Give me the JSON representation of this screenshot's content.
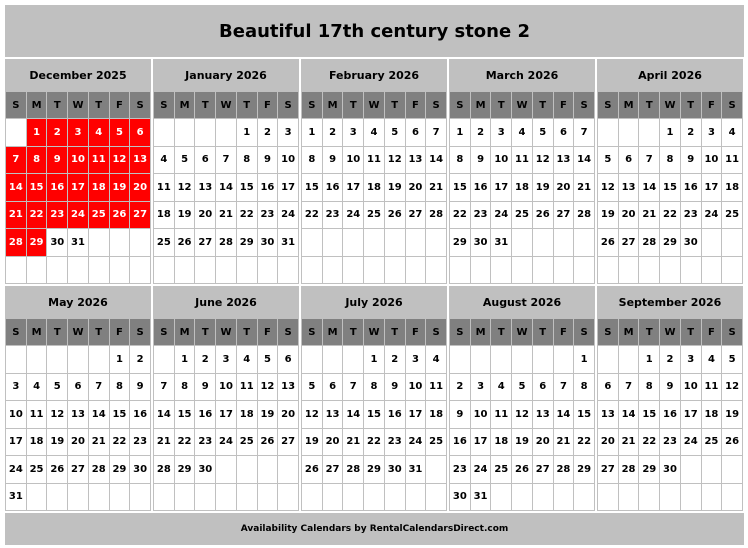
{
  "title": "Beautiful 17th century stone 2",
  "footer": "Availability Calendars by RentalCalendarsDirect.com",
  "colors": {
    "booked": "#ff0000",
    "header": "#c0c0c0",
    "weekday_header": "#808080"
  },
  "weekdays": [
    "S",
    "M",
    "T",
    "W",
    "T",
    "F",
    "S"
  ],
  "months": [
    {
      "name": "December 2025",
      "first_weekday": 1,
      "days": 31,
      "booked": [
        1,
        2,
        3,
        4,
        5,
        6,
        7,
        8,
        9,
        10,
        11,
        12,
        13,
        14,
        15,
        16,
        17,
        18,
        19,
        20,
        21,
        22,
        23,
        24,
        25,
        26,
        27,
        28,
        29
      ]
    },
    {
      "name": "January 2026",
      "first_weekday": 4,
      "days": 31,
      "booked": []
    },
    {
      "name": "February 2026",
      "first_weekday": 0,
      "days": 28,
      "booked": []
    },
    {
      "name": "March 2026",
      "first_weekday": 0,
      "days": 31,
      "booked": []
    },
    {
      "name": "April 2026",
      "first_weekday": 3,
      "days": 30,
      "booked": []
    },
    {
      "name": "May 2026",
      "first_weekday": 5,
      "days": 31,
      "booked": []
    },
    {
      "name": "June 2026",
      "first_weekday": 1,
      "days": 30,
      "booked": []
    },
    {
      "name": "July 2026",
      "first_weekday": 3,
      "days": 31,
      "booked": []
    },
    {
      "name": "August 2026",
      "first_weekday": 6,
      "days": 31,
      "booked": []
    },
    {
      "name": "September 2026",
      "first_weekday": 2,
      "days": 30,
      "booked": []
    }
  ]
}
